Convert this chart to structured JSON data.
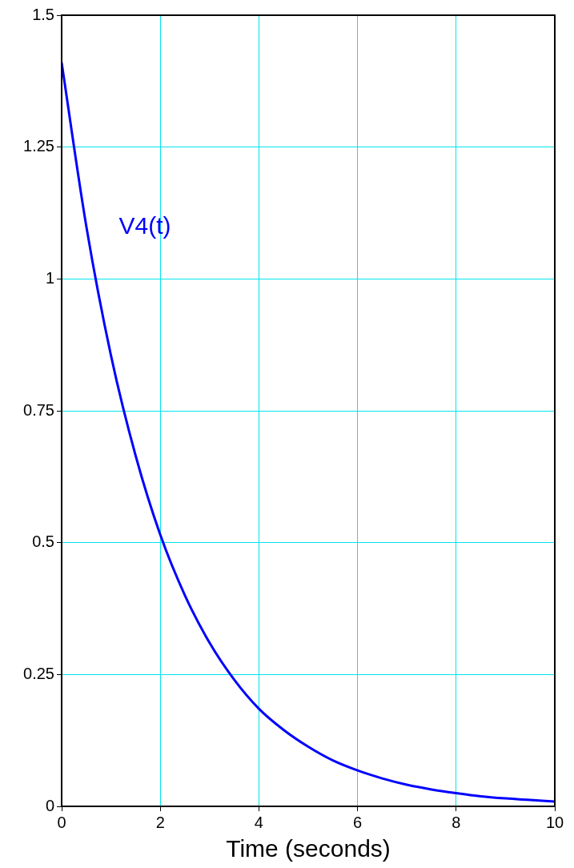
{
  "chart_data": {
    "type": "line",
    "xlabel": "Time (seconds)",
    "x": [
      0,
      0.5,
      1,
      1.5,
      2,
      2.5,
      3,
      3.5,
      4,
      4.5,
      5,
      5.5,
      6,
      6.5,
      7,
      7.5,
      8,
      8.5,
      9,
      9.5,
      10
    ],
    "series": [
      {
        "name": "V4(t)",
        "color": "#0000ff",
        "values": [
          1.41,
          1.1,
          0.855,
          0.665,
          0.515,
          0.4,
          0.31,
          0.24,
          0.185,
          0.145,
          0.113,
          0.087,
          0.068,
          0.053,
          0.041,
          0.032,
          0.025,
          0.019,
          0.015,
          0.012,
          0.009
        ]
      }
    ],
    "xlim": [
      0,
      10
    ],
    "xticks": [
      0,
      2,
      4,
      6,
      8,
      10
    ],
    "ylim": [
      0,
      1.5
    ],
    "yticks": [
      0,
      0.25,
      0.5,
      0.75,
      1,
      1.25,
      1.5
    ],
    "grid": true,
    "legend": false,
    "marker": "none",
    "line_style": "solid"
  }
}
